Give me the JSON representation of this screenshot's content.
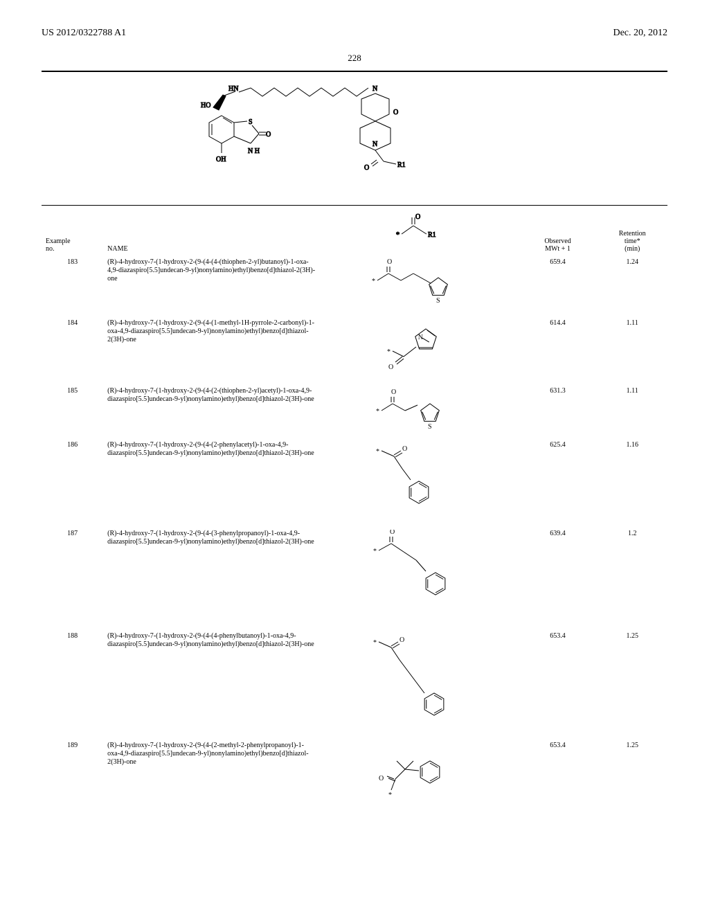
{
  "header": {
    "left": "US 2012/0322788 A1",
    "right": "Dec. 20, 2012"
  },
  "page_number": "228",
  "columns": {
    "example": "Example\nno.",
    "name": "NAME",
    "struct_header_label": "R1",
    "observed": "Observed\nMWt + 1",
    "retention": "Retention\ntime*\n(min)"
  },
  "rows": [
    {
      "no": "183",
      "name": "(R)-4-hydroxy-7-(1-hydroxy-2-(9-(4-(4-(thiophen-2-yl)butanoyl)-1-oxa-4,9-diazaspiro[5.5]undecan-9-yl)nonylamino)ethyl)benzo[d]thiazol-2(3H)-one",
      "observed": "659.4",
      "rt": "1.24",
      "struct": "thiophene-butanoyl"
    },
    {
      "no": "184",
      "name": "(R)-4-hydroxy-7-(1-hydroxy-2-(9-(4-(1-methyl-1H-pyrrole-2-carbonyl)-1-oxa-4,9-diazaspiro[5.5]undecan-9-yl)nonylamino)ethyl)benzo[d]thiazol-2(3H)-one",
      "observed": "614.4",
      "rt": "1.11",
      "struct": "pyrrole-carbonyl"
    },
    {
      "no": "185",
      "name": "(R)-4-hydroxy-7-(1-hydroxy-2-(9-(4-(2-(thiophen-2-yl)acetyl)-1-oxa-4,9-diazaspiro[5.5]undecan-9-yl)nonylamino)ethyl)benzo[d]thiazol-2(3H)-one",
      "observed": "631.3",
      "rt": "1.11",
      "struct": "thiophene-acetyl"
    },
    {
      "no": "186",
      "name": "(R)-4-hydroxy-7-(1-hydroxy-2-(9-(4-(2-phenylacetyl)-1-oxa-4,9-diazaspiro[5.5]undecan-9-yl)nonylamino)ethyl)benzo[d]thiazol-2(3H)-one",
      "observed": "625.4",
      "rt": "1.16",
      "struct": "phenylacetyl"
    },
    {
      "no": "187",
      "name": "(R)-4-hydroxy-7-(1-hydroxy-2-(9-(4-(3-phenylpropanoyl)-1-oxa-4,9-diazaspiro[5.5]undecan-9-yl)nonylamino)ethyl)benzo[d]thiazol-2(3H)-one",
      "observed": "639.4",
      "rt": "1.2",
      "struct": "phenylpropanoyl"
    },
    {
      "no": "188",
      "name": "(R)-4-hydroxy-7-(1-hydroxy-2-(9-(4-(4-phenylbutanoyl)-1-oxa-4,9-diazaspiro[5.5]undecan-9-yl)nonylamino)ethyl)benzo[d]thiazol-2(3H)-one",
      "observed": "653.4",
      "rt": "1.25",
      "struct": "phenylbutanoyl"
    },
    {
      "no": "189",
      "name": "(R)-4-hydroxy-7-(1-hydroxy-2-(9-(4-(2-methyl-2-phenylpropanoyl)-1-oxa-4,9-diazaspiro[5.5]undecan-9-yl)nonylamino)ethyl)benzo[d]thiazol-2(3H)-one",
      "observed": "653.4",
      "rt": "1.25",
      "struct": "methylphenylpropanoyl"
    }
  ],
  "scaffold_labels": {
    "HN": "HN",
    "HO": "HO",
    "O": "O",
    "S": "S",
    "N": "N",
    "NH": "N\nH",
    "OH": "OH",
    "R1": "R1"
  },
  "struct_header_labels": {
    "O": "O",
    "star": "*",
    "R1": "R1"
  }
}
